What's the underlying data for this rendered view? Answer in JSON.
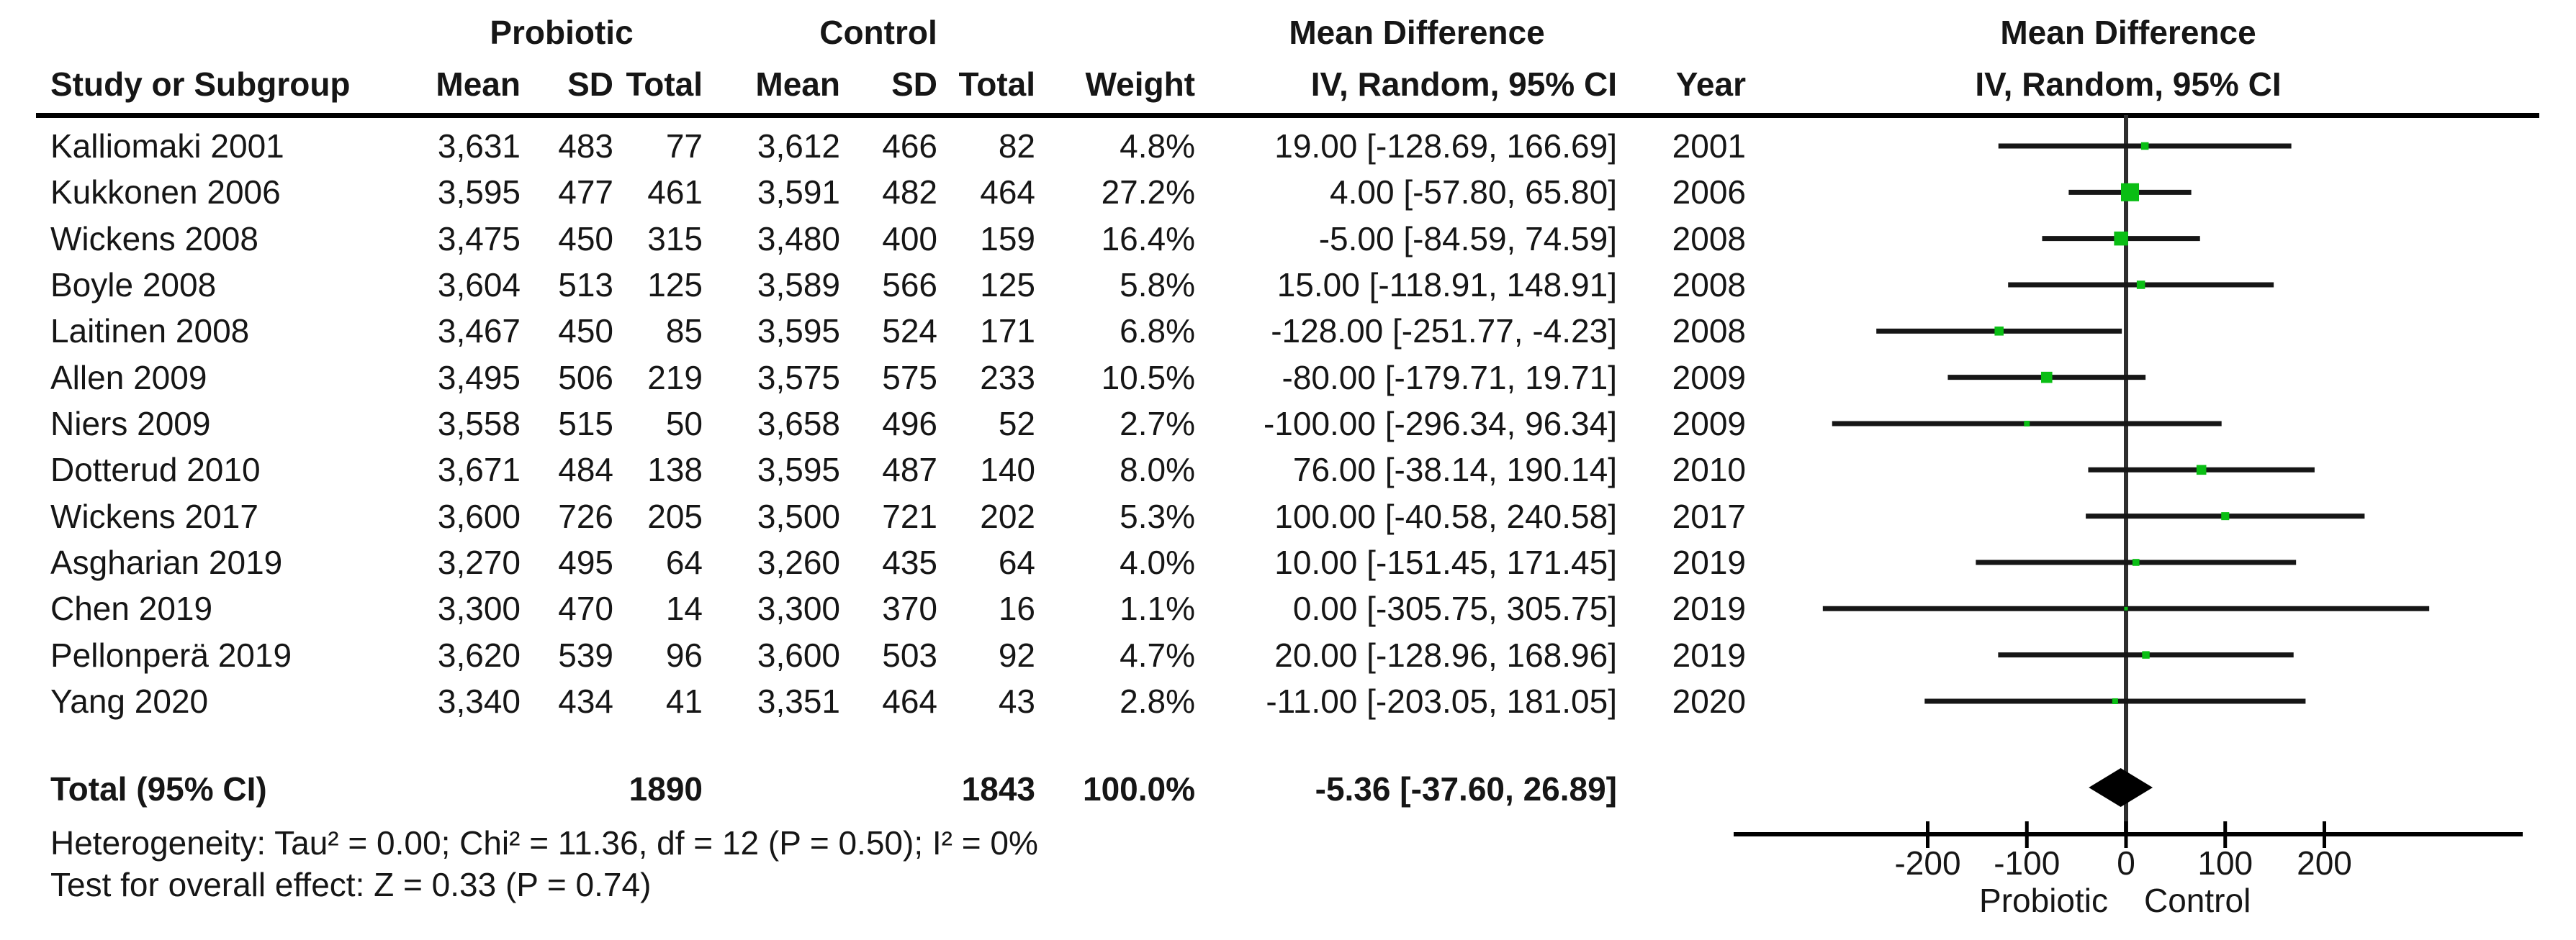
{
  "header": {
    "group1": "Probiotic",
    "group2": "Control",
    "md_left_line1": "Mean Difference",
    "md_left_line2": "IV, Random, 95% CI",
    "md_right_line1": "Mean Difference",
    "md_right_line2": "IV, Random, 95% CI",
    "study_col": "Study or Subgroup",
    "mean_col": "Mean",
    "sd_col": "SD",
    "total_col": "Total",
    "weight_col": "Weight",
    "year_col": "Year"
  },
  "totals": {
    "label": "Total (95% CI)",
    "p_total": "1890",
    "c_total": "1843",
    "weight": "100.0%",
    "ci_text": "-5.36 [-37.60, 26.89]",
    "md": -5.36,
    "lo": -37.6,
    "hi": 26.89
  },
  "stats": {
    "heterogeneity": "Heterogeneity: Tau² = 0.00; Chi² = 11.36, df = 12 (P = 0.50); I² = 0%",
    "overall_effect": "Test for overall effect: Z = 0.33 (P = 0.74)"
  },
  "colors": {
    "square": "#0abe14",
    "diamond": "#000000",
    "ci_line": "#161616",
    "zero_line": "#2e2e2e",
    "axis": "#000000",
    "text": "#161616"
  },
  "chart_data": {
    "type": "forest",
    "effect_measure": "Mean Difference, IV, Random, 95% CI",
    "xlabel_left": "Probiotic",
    "xlabel_right": "Control",
    "axis_ticks": [
      -200,
      -100,
      0,
      100,
      200
    ],
    "axis_range": [
      -400,
      400
    ],
    "studies": [
      {
        "name": "Kalliomaki 2001",
        "p_mean": "3,631",
        "p_sd": "483",
        "p_total": "77",
        "c_mean": "3,612",
        "c_sd": "466",
        "c_total": "82",
        "weight": "4.8%",
        "ci_text": "19.00 [-128.69, 166.69]",
        "year": "2001",
        "md": 19.0,
        "lo": -128.69,
        "hi": 166.69,
        "weight_pct": 4.8
      },
      {
        "name": "Kukkonen 2006",
        "p_mean": "3,595",
        "p_sd": "477",
        "p_total": "461",
        "c_mean": "3,591",
        "c_sd": "482",
        "c_total": "464",
        "weight": "27.2%",
        "ci_text": "4.00 [-57.80, 65.80]",
        "year": "2006",
        "md": 4.0,
        "lo": -57.8,
        "hi": 65.8,
        "weight_pct": 27.2
      },
      {
        "name": "Wickens 2008",
        "p_mean": "3,475",
        "p_sd": "450",
        "p_total": "315",
        "c_mean": "3,480",
        "c_sd": "400",
        "c_total": "159",
        "weight": "16.4%",
        "ci_text": "-5.00 [-84.59, 74.59]",
        "year": "2008",
        "md": -5.0,
        "lo": -84.59,
        "hi": 74.59,
        "weight_pct": 16.4
      },
      {
        "name": "Boyle 2008",
        "p_mean": "3,604",
        "p_sd": "513",
        "p_total": "125",
        "c_mean": "3,589",
        "c_sd": "566",
        "c_total": "125",
        "weight": "5.8%",
        "ci_text": "15.00 [-118.91, 148.91]",
        "year": "2008",
        "md": 15.0,
        "lo": -118.91,
        "hi": 148.91,
        "weight_pct": 5.8
      },
      {
        "name": "Laitinen 2008",
        "p_mean": "3,467",
        "p_sd": "450",
        "p_total": "85",
        "c_mean": "3,595",
        "c_sd": "524",
        "c_total": "171",
        "weight": "6.8%",
        "ci_text": "-128.00 [-251.77, -4.23]",
        "year": "2008",
        "md": -128.0,
        "lo": -251.77,
        "hi": -4.23,
        "weight_pct": 6.8
      },
      {
        "name": "Allen 2009",
        "p_mean": "3,495",
        "p_sd": "506",
        "p_total": "219",
        "c_mean": "3,575",
        "c_sd": "575",
        "c_total": "233",
        "weight": "10.5%",
        "ci_text": "-80.00 [-179.71, 19.71]",
        "year": "2009",
        "md": -80.0,
        "lo": -179.71,
        "hi": 19.71,
        "weight_pct": 10.5
      },
      {
        "name": "Niers 2009",
        "p_mean": "3,558",
        "p_sd": "515",
        "p_total": "50",
        "c_mean": "3,658",
        "c_sd": "496",
        "c_total": "52",
        "weight": "2.7%",
        "ci_text": "-100.00 [-296.34, 96.34]",
        "year": "2009",
        "md": -100.0,
        "lo": -296.34,
        "hi": 96.34,
        "weight_pct": 2.7
      },
      {
        "name": "Dotterud 2010",
        "p_mean": "3,671",
        "p_sd": "484",
        "p_total": "138",
        "c_mean": "3,595",
        "c_sd": "487",
        "c_total": "140",
        "weight": "8.0%",
        "ci_text": "76.00 [-38.14, 190.14]",
        "year": "2010",
        "md": 76.0,
        "lo": -38.14,
        "hi": 190.14,
        "weight_pct": 8.0
      },
      {
        "name": "Wickens 2017",
        "p_mean": "3,600",
        "p_sd": "726",
        "p_total": "205",
        "c_mean": "3,500",
        "c_sd": "721",
        "c_total": "202",
        "weight": "5.3%",
        "ci_text": "100.00 [-40.58, 240.58]",
        "year": "2017",
        "md": 100.0,
        "lo": -40.58,
        "hi": 240.58,
        "weight_pct": 5.3
      },
      {
        "name": "Asgharian 2019",
        "p_mean": "3,270",
        "p_sd": "495",
        "p_total": "64",
        "c_mean": "3,260",
        "c_sd": "435",
        "c_total": "64",
        "weight": "4.0%",
        "ci_text": "10.00 [-151.45, 171.45]",
        "year": "2019",
        "md": 10.0,
        "lo": -151.45,
        "hi": 171.45,
        "weight_pct": 4.0
      },
      {
        "name": "Chen 2019",
        "p_mean": "3,300",
        "p_sd": "470",
        "p_total": "14",
        "c_mean": "3,300",
        "c_sd": "370",
        "c_total": "16",
        "weight": "1.1%",
        "ci_text": "0.00 [-305.75, 305.75]",
        "year": "2019",
        "md": 0.0,
        "lo": -305.75,
        "hi": 305.75,
        "weight_pct": 1.1
      },
      {
        "name": "Pellonperä 2019",
        "p_mean": "3,620",
        "p_sd": "539",
        "p_total": "96",
        "c_mean": "3,600",
        "c_sd": "503",
        "c_total": "92",
        "weight": "4.7%",
        "ci_text": "20.00 [-128.96, 168.96]",
        "year": "2019",
        "md": 20.0,
        "lo": -128.96,
        "hi": 168.96,
        "weight_pct": 4.7
      },
      {
        "name": "Yang 2020",
        "p_mean": "3,340",
        "p_sd": "434",
        "p_total": "41",
        "c_mean": "3,351",
        "c_sd": "464",
        "c_total": "43",
        "weight": "2.8%",
        "ci_text": "-11.00 [-203.05, 181.05]",
        "year": "2020",
        "md": -11.0,
        "lo": -203.05,
        "hi": 181.05,
        "weight_pct": 2.8
      }
    ],
    "total": {
      "label": "Total (95% CI)",
      "md": -5.36,
      "lo": -37.6,
      "hi": 26.89,
      "weight": "100.0%"
    }
  }
}
